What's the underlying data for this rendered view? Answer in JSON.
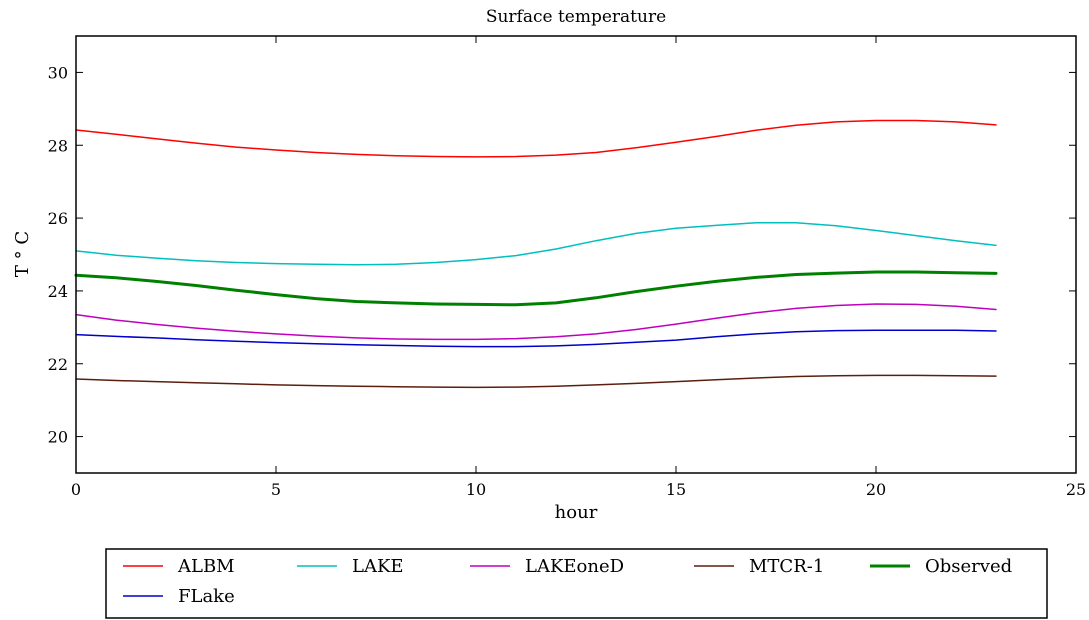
{
  "chart_data": {
    "type": "line",
    "title": "Surface temperature",
    "xlabel": "hour",
    "ylabel": "T ° C",
    "xlim": [
      0,
      25
    ],
    "ylim": [
      19,
      31
    ],
    "xticks": [
      0,
      5,
      10,
      15,
      20,
      25
    ],
    "yticks": [
      20,
      22,
      24,
      26,
      28,
      30
    ],
    "grid": false,
    "legend_position": "bottom-outside",
    "series": [
      {
        "name": "ALBM",
        "color": "#ff0000",
        "width": 1.5,
        "x": [
          0,
          1,
          2,
          3,
          4,
          5,
          6,
          7,
          8,
          9,
          10,
          11,
          12,
          13,
          14,
          15,
          16,
          17,
          18,
          19,
          20,
          21,
          22,
          23
        ],
        "y": [
          28.42,
          28.3,
          28.18,
          28.06,
          27.95,
          27.87,
          27.8,
          27.75,
          27.71,
          27.69,
          27.68,
          27.69,
          27.73,
          27.8,
          27.93,
          28.08,
          28.24,
          28.41,
          28.55,
          28.64,
          28.68,
          28.68,
          28.64,
          28.56
        ]
      },
      {
        "name": "LAKE",
        "color": "#00bfbf",
        "width": 1.5,
        "x": [
          0,
          1,
          2,
          3,
          4,
          5,
          6,
          7,
          8,
          9,
          10,
          11,
          12,
          13,
          14,
          15,
          16,
          17,
          18,
          19,
          20,
          21,
          22,
          23
        ],
        "y": [
          25.1,
          24.98,
          24.9,
          24.83,
          24.78,
          24.75,
          24.73,
          24.72,
          24.73,
          24.78,
          24.86,
          24.97,
          25.15,
          25.38,
          25.58,
          25.72,
          25.8,
          25.87,
          25.87,
          25.79,
          25.66,
          25.52,
          25.38,
          25.25
        ]
      },
      {
        "name": "LAKEoneD",
        "color": "#bf00bf",
        "width": 1.5,
        "x": [
          0,
          1,
          2,
          3,
          4,
          5,
          6,
          7,
          8,
          9,
          10,
          11,
          12,
          13,
          14,
          15,
          16,
          17,
          18,
          19,
          20,
          21,
          22,
          23
        ],
        "y": [
          23.35,
          23.2,
          23.08,
          22.98,
          22.89,
          22.82,
          22.76,
          22.71,
          22.68,
          22.67,
          22.67,
          22.69,
          22.74,
          22.82,
          22.94,
          23.09,
          23.25,
          23.4,
          23.52,
          23.6,
          23.64,
          23.63,
          23.58,
          23.49
        ]
      },
      {
        "name": "MTCR-1",
        "color": "#5c1f0f",
        "width": 1.5,
        "x": [
          0,
          1,
          2,
          3,
          4,
          5,
          6,
          7,
          8,
          9,
          10,
          11,
          12,
          13,
          14,
          15,
          16,
          17,
          18,
          19,
          20,
          21,
          22,
          23
        ],
        "y": [
          21.58,
          21.54,
          21.51,
          21.48,
          21.45,
          21.42,
          21.4,
          21.38,
          21.37,
          21.36,
          21.35,
          21.36,
          21.38,
          21.42,
          21.46,
          21.51,
          21.56,
          21.61,
          21.65,
          21.67,
          21.68,
          21.68,
          21.67,
          21.66
        ]
      },
      {
        "name": "Observed",
        "color": "#008000",
        "width": 3,
        "x": [
          0,
          1,
          2,
          3,
          4,
          5,
          6,
          7,
          8,
          9,
          10,
          11,
          12,
          13,
          14,
          15,
          16,
          17,
          18,
          19,
          20,
          21,
          22,
          23
        ],
        "y": [
          24.43,
          24.36,
          24.26,
          24.15,
          24.02,
          23.9,
          23.79,
          23.71,
          23.67,
          23.64,
          23.63,
          23.62,
          23.67,
          23.81,
          23.98,
          24.13,
          24.26,
          24.37,
          24.45,
          24.49,
          24.52,
          24.52,
          24.5,
          24.48
        ]
      },
      {
        "name": "FLake",
        "color": "#0000cc",
        "width": 1.5,
        "x": [
          0,
          1,
          2,
          3,
          4,
          5,
          6,
          7,
          8,
          9,
          10,
          11,
          12,
          13,
          14,
          15,
          16,
          17,
          18,
          19,
          20,
          21,
          22,
          23
        ],
        "y": [
          22.8,
          22.75,
          22.71,
          22.66,
          22.62,
          22.58,
          22.55,
          22.52,
          22.5,
          22.48,
          22.47,
          22.47,
          22.49,
          22.53,
          22.59,
          22.65,
          22.74,
          22.82,
          22.88,
          22.91,
          22.92,
          22.92,
          22.92,
          22.9
        ]
      }
    ]
  }
}
